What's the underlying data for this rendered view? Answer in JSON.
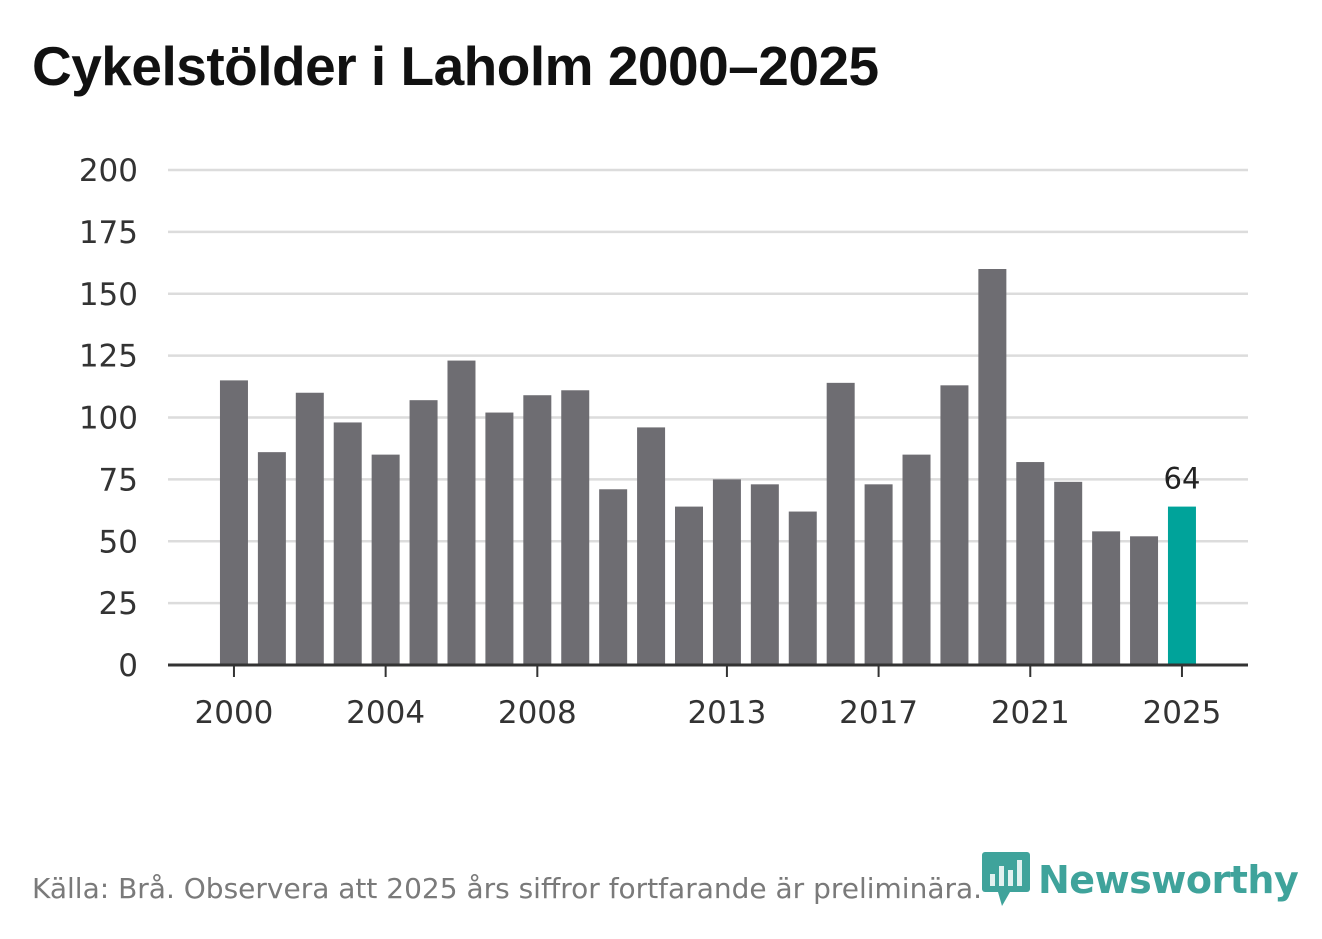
{
  "title": "Cykelstölder i Laholm 2000–2025",
  "source": "Källa: Brå. Observera att 2025 års siffror fortfarande är preliminära.",
  "brand": {
    "name": "Newsworthy",
    "color": "#3fa39b",
    "icon": "newsworthy-logo-icon"
  },
  "colors": {
    "bar": "#6e6d72",
    "highlight": "#00a39a",
    "grid": "#dcdcdc",
    "axis": "#333333"
  },
  "chart_data": {
    "type": "bar",
    "title": "Cykelstölder i Laholm 2000–2025",
    "xlabel": "",
    "ylabel": "",
    "categories": [
      "2000",
      "2001",
      "2002",
      "2003",
      "2004",
      "2005",
      "2006",
      "2007",
      "2008",
      "2009",
      "2010",
      "2011",
      "2012",
      "2013",
      "2014",
      "2015",
      "2016",
      "2017",
      "2018",
      "2019",
      "2020",
      "2021",
      "2022",
      "2023",
      "2024",
      "2025"
    ],
    "values": [
      115,
      86,
      110,
      98,
      85,
      107,
      123,
      102,
      109,
      111,
      71,
      96,
      64,
      75,
      73,
      62,
      114,
      73,
      85,
      113,
      160,
      82,
      74,
      54,
      52,
      64
    ],
    "ylim": [
      0,
      200
    ],
    "yticks": [
      0,
      25,
      50,
      75,
      100,
      125,
      150,
      175,
      200
    ],
    "xtick_labels": [
      "2000",
      "2004",
      "2008",
      "2013",
      "2017",
      "2021",
      "2025"
    ],
    "highlight": {
      "category": "2025",
      "label": "64"
    },
    "grid": true
  }
}
